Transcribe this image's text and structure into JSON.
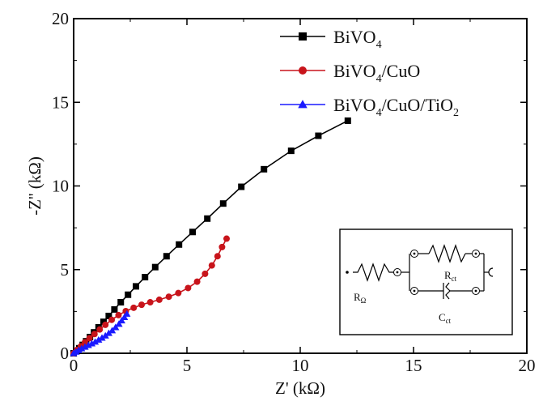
{
  "chart_data": {
    "type": "line",
    "xlabel": "Z' (kΩ)",
    "ylabel": "-Z'' (kΩ)",
    "xlim": [
      0,
      20
    ],
    "ylim": [
      0,
      20
    ],
    "xticks": [
      0,
      5,
      10,
      15,
      20
    ],
    "yticks": [
      0,
      5,
      10,
      15,
      20
    ],
    "grid": false,
    "legend_position": "top-right",
    "series": [
      {
        "name": "BiVO4",
        "label_main": "BiVO",
        "label_sub": "4",
        "label_tail": "",
        "color": "#000000",
        "marker": "square",
        "x": [
          0.0,
          0.12,
          0.25,
          0.4,
          0.55,
          0.72,
          0.9,
          1.1,
          1.32,
          1.55,
          1.8,
          2.08,
          2.4,
          2.75,
          3.15,
          3.6,
          4.1,
          4.65,
          5.25,
          5.9,
          6.6,
          7.4,
          8.4,
          9.6,
          10.8,
          12.1
        ],
        "y": [
          0.0,
          0.12,
          0.3,
          0.5,
          0.72,
          0.97,
          1.25,
          1.55,
          1.88,
          2.23,
          2.62,
          3.05,
          3.5,
          4.0,
          4.55,
          5.15,
          5.8,
          6.5,
          7.25,
          8.05,
          8.95,
          9.95,
          11.0,
          12.1,
          13.0,
          13.9
        ]
      },
      {
        "name": "BiVO4/CuO",
        "label_main": "BiVO",
        "label_sub": "4",
        "label_tail": "/CuO",
        "color": "#c8141b",
        "marker": "circle",
        "x": [
          0.0,
          0.15,
          0.32,
          0.5,
          0.7,
          0.92,
          1.15,
          1.4,
          1.68,
          1.98,
          2.3,
          2.65,
          3.0,
          3.38,
          3.78,
          4.2,
          4.62,
          5.05,
          5.45,
          5.8,
          6.1,
          6.35,
          6.55,
          6.75
        ],
        "y": [
          0.0,
          0.2,
          0.42,
          0.66,
          0.9,
          1.15,
          1.42,
          1.7,
          2.0,
          2.28,
          2.52,
          2.72,
          2.9,
          3.05,
          3.2,
          3.38,
          3.6,
          3.9,
          4.28,
          4.75,
          5.25,
          5.8,
          6.35,
          6.85
        ]
      },
      {
        "name": "BiVO4/CuO/TiO2",
        "label_main": "BiVO",
        "label_sub": "4",
        "label_tail": "/CuO/TiO",
        "label_sub2": "2",
        "color": "#1a1aff",
        "marker": "triangle",
        "x": [
          0.0,
          0.1,
          0.22,
          0.35,
          0.5,
          0.65,
          0.8,
          0.95,
          1.1,
          1.25,
          1.4,
          1.55,
          1.7,
          1.85,
          2.0,
          2.12,
          2.24,
          2.35
        ],
        "y": [
          0.0,
          0.08,
          0.18,
          0.28,
          0.38,
          0.48,
          0.58,
          0.68,
          0.8,
          0.92,
          1.05,
          1.2,
          1.36,
          1.55,
          1.75,
          1.95,
          2.15,
          2.35
        ]
      }
    ],
    "inset": {
      "type": "equivalent-circuit",
      "labels": {
        "r_omega": "R",
        "r_omega_sub": "Ω",
        "r_ct": "R",
        "r_ct_sub": "ct",
        "c_ct": "C",
        "c_ct_sub": "ct"
      }
    }
  }
}
